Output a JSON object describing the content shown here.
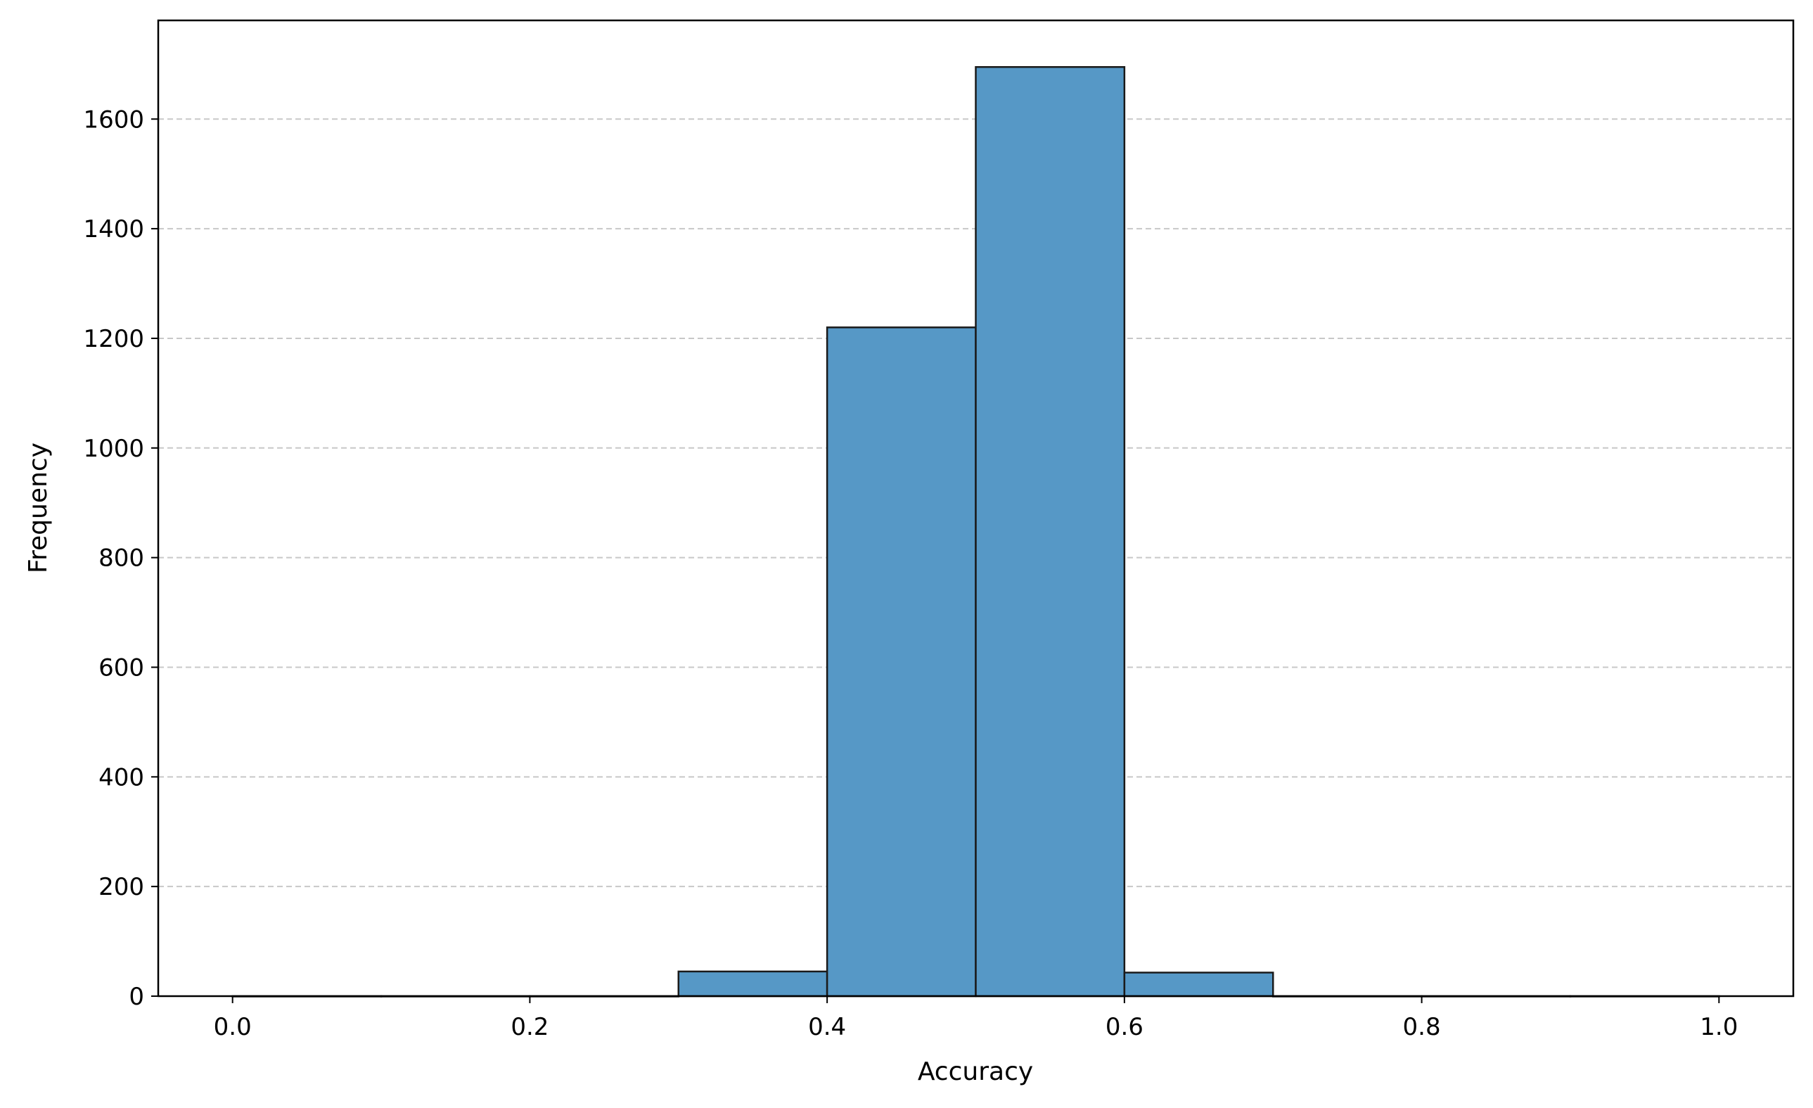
{
  "chart_data": {
    "type": "bar",
    "title": "",
    "xlabel": "Accuracy",
    "ylabel": "Frequency",
    "xlim": [
      -0.05,
      1.05
    ],
    "ylim": [
      0,
      1780
    ],
    "bins": [
      {
        "x0": 0.0,
        "x1": 0.1,
        "count": 0
      },
      {
        "x0": 0.1,
        "x1": 0.2,
        "count": 0
      },
      {
        "x0": 0.2,
        "x1": 0.3,
        "count": 0
      },
      {
        "x0": 0.3,
        "x1": 0.4,
        "count": 45
      },
      {
        "x0": 0.4,
        "x1": 0.5,
        "count": 1220
      },
      {
        "x0": 0.5,
        "x1": 0.6,
        "count": 1695
      },
      {
        "x0": 0.6,
        "x1": 0.7,
        "count": 43
      },
      {
        "x0": 0.7,
        "x1": 0.8,
        "count": 0
      },
      {
        "x0": 0.8,
        "x1": 0.9,
        "count": 0
      },
      {
        "x0": 0.9,
        "x1": 1.0,
        "count": 0
      }
    ],
    "x_ticks": [
      "0.0",
      "0.2",
      "0.4",
      "0.6",
      "0.8",
      "1.0"
    ],
    "y_ticks": [
      "0",
      "200",
      "400",
      "600",
      "800",
      "1000",
      "1200",
      "1400",
      "1600"
    ],
    "grid": {
      "y": true,
      "x": false,
      "style": "dashed"
    },
    "colors": {
      "bar_fill": "#5698c6",
      "bar_edge": "#1a1a1a",
      "grid": "#c8c8c8",
      "axis": "#000000"
    }
  }
}
